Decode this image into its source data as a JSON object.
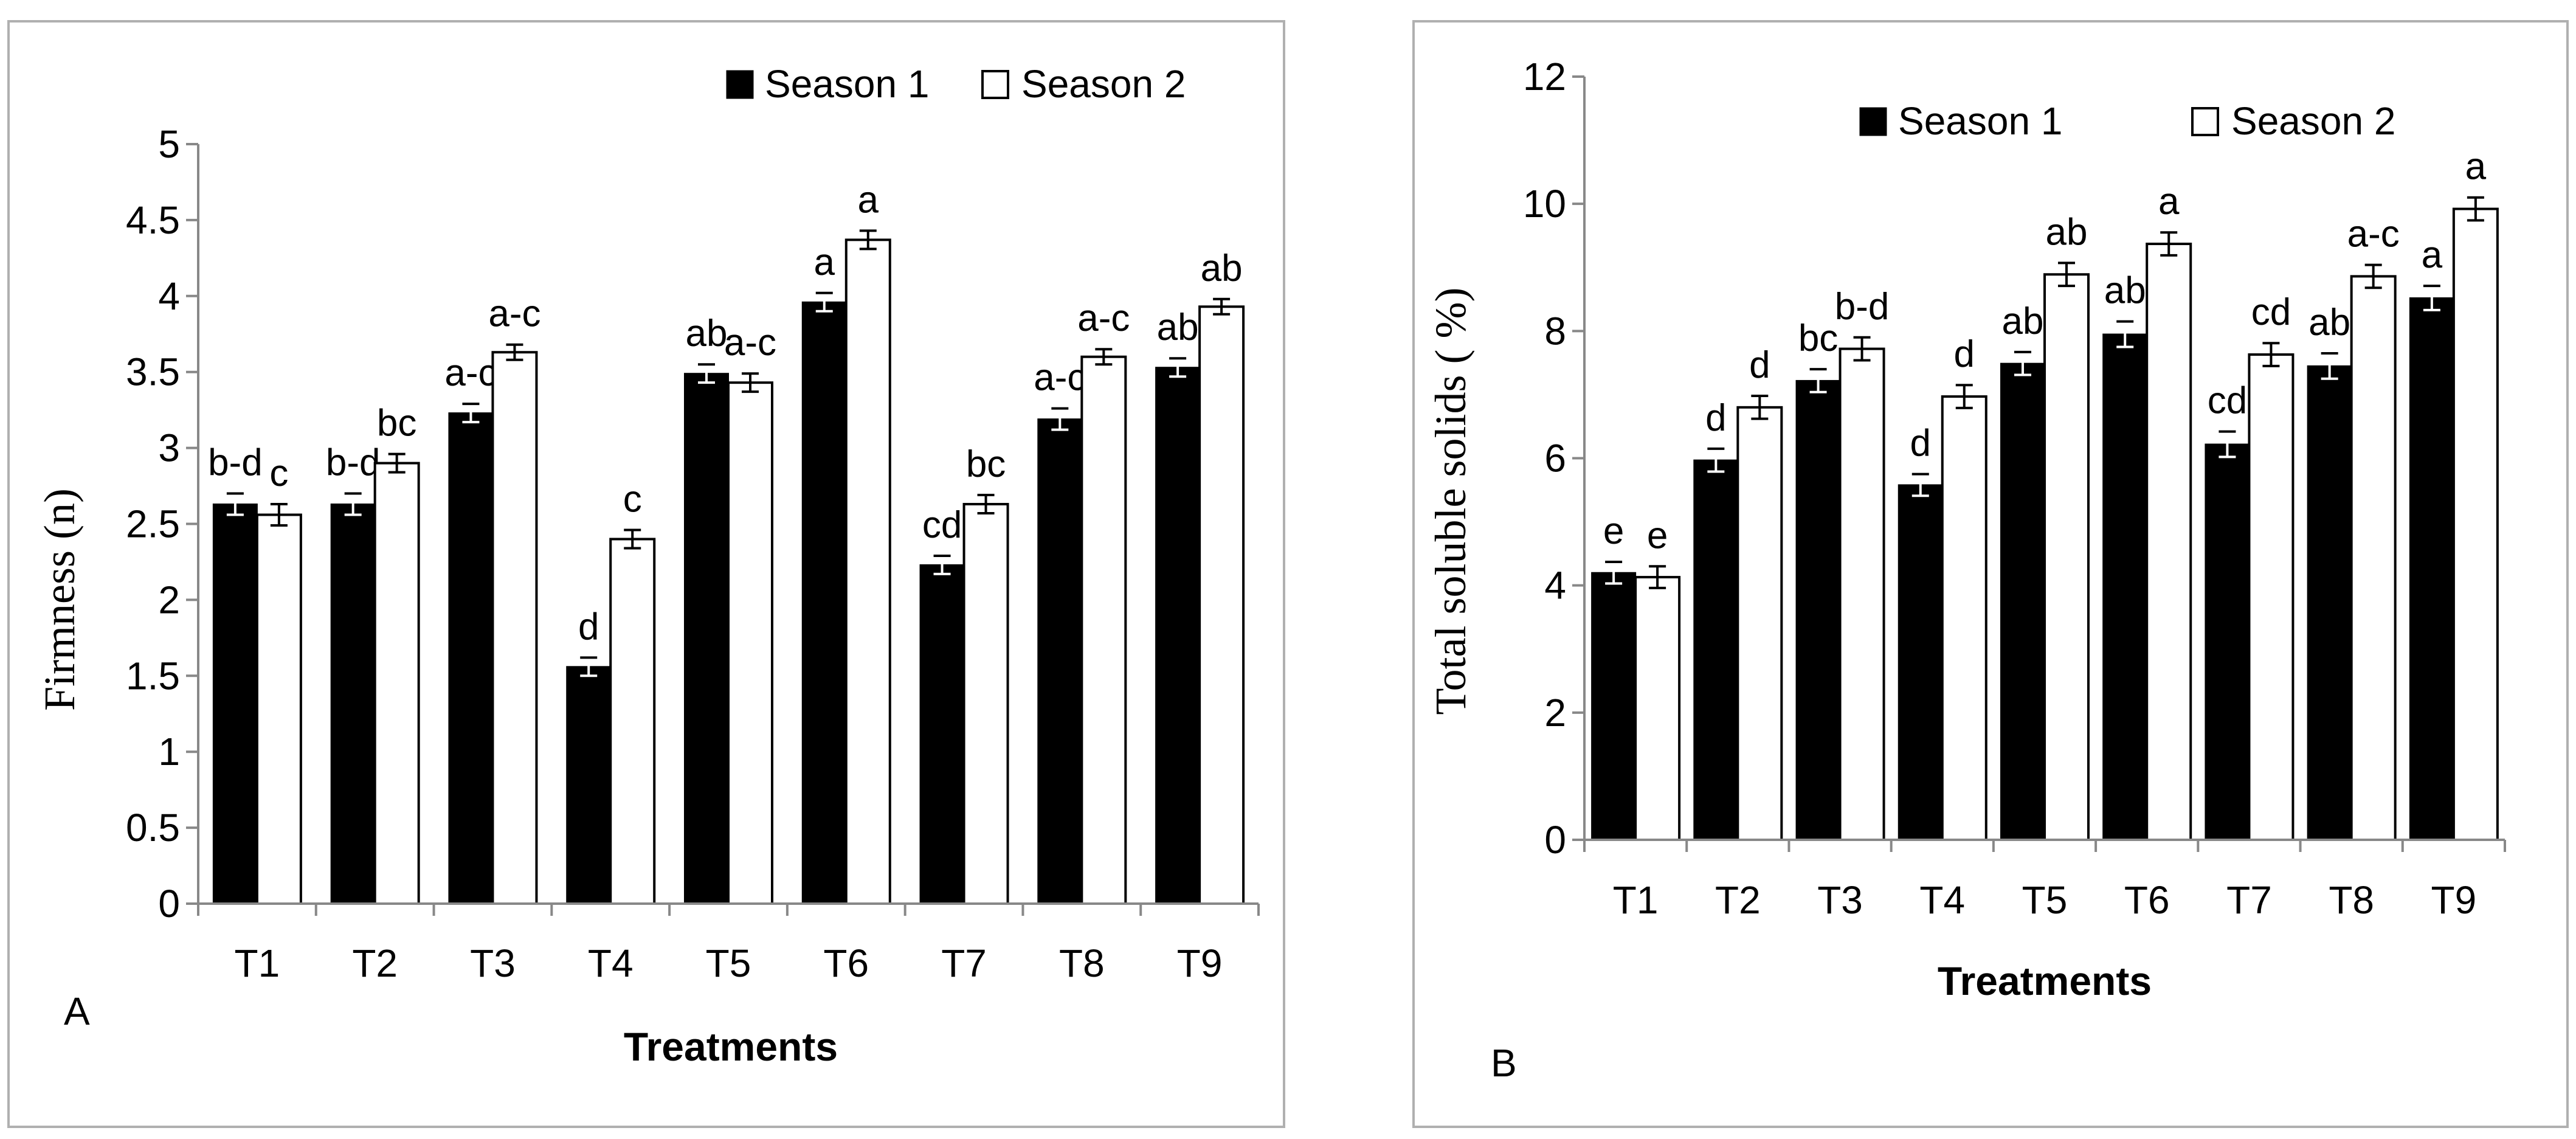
{
  "chart_data": [
    {
      "type": "bar",
      "panel_label": "A",
      "title": "",
      "xlabel": "Treatments",
      "ylabel": "Firmness (n)",
      "ylim": [
        0,
        5
      ],
      "yticks": [
        0,
        0.5,
        1,
        1.5,
        2,
        2.5,
        3,
        3.5,
        4,
        4.5,
        5
      ],
      "ytick_labels": [
        "0",
        "0.5",
        "1",
        "1.5",
        "2",
        "2.5",
        "3",
        "3.5",
        "4",
        "4.5",
        "5"
      ],
      "grid": false,
      "legend_position": "top-right",
      "categories": [
        "T1",
        "T2",
        "T3",
        "T4",
        "T5",
        "T6",
        "T7",
        "T8",
        "T9"
      ],
      "series": [
        {
          "name": "Season 1",
          "color": "#000000",
          "values": [
            2.63,
            2.63,
            3.23,
            1.56,
            3.49,
            3.96,
            2.23,
            3.19,
            3.53
          ],
          "errors": [
            0.07,
            0.07,
            0.06,
            0.06,
            0.06,
            0.06,
            0.06,
            0.07,
            0.06
          ],
          "letters": [
            "b-d",
            "b-d",
            "a-c",
            "d",
            "ab",
            "a",
            "cd",
            "a-c",
            "ab"
          ]
        },
        {
          "name": "Season 2",
          "color": "#ffffff",
          "values": [
            2.56,
            2.9,
            3.63,
            2.4,
            3.43,
            4.37,
            2.63,
            3.6,
            3.93
          ],
          "errors": [
            0.07,
            0.06,
            0.05,
            0.06,
            0.06,
            0.06,
            0.06,
            0.05,
            0.05
          ],
          "letters": [
            "c",
            "bc",
            "a-c",
            "c",
            "a-c",
            "a",
            "bc",
            "a-c",
            "ab"
          ]
        }
      ]
    },
    {
      "type": "bar",
      "panel_label": "B",
      "title": "",
      "xlabel": "Treatments",
      "ylabel": "Total soluble solids ( %)",
      "ylim": [
        0,
        12
      ],
      "yticks": [
        0,
        2,
        4,
        6,
        8,
        10,
        12
      ],
      "ytick_labels": [
        "0",
        "2",
        "4",
        "6",
        "8",
        "10",
        "12"
      ],
      "grid": false,
      "legend_position": "top-right",
      "categories": [
        "T1",
        "T2",
        "T3",
        "T4",
        "T5",
        "T6",
        "T7",
        "T8",
        "T9"
      ],
      "series": [
        {
          "name": "Season 1",
          "color": "#000000",
          "values": [
            4.2,
            5.97,
            7.22,
            5.58,
            7.49,
            7.95,
            6.22,
            7.45,
            8.52
          ],
          "errors": [
            0.17,
            0.18,
            0.18,
            0.17,
            0.18,
            0.2,
            0.2,
            0.2,
            0.19
          ],
          "letters": [
            "e",
            "d",
            "bc",
            "d",
            "ab",
            "ab",
            "cd",
            "ab",
            "a"
          ]
        },
        {
          "name": "Season 2",
          "color": "#ffffff",
          "values": [
            4.13,
            6.8,
            7.72,
            6.97,
            8.89,
            9.37,
            7.63,
            8.86,
            9.92
          ],
          "errors": [
            0.17,
            0.18,
            0.18,
            0.18,
            0.18,
            0.18,
            0.18,
            0.18,
            0.18
          ],
          "letters": [
            "e",
            "d",
            "b-d",
            "d",
            "ab",
            "a",
            "cd",
            "a-c",
            "a"
          ]
        }
      ]
    }
  ]
}
